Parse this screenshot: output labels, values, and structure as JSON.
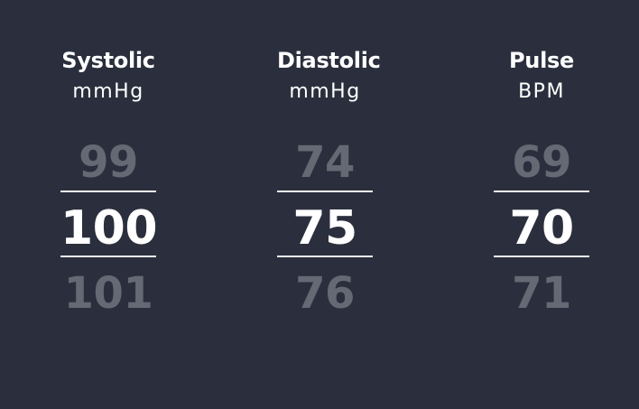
{
  "colors": {
    "background": "#2b2f3d",
    "text": "#ffffff",
    "divider": "#f1f1f1"
  },
  "columns": [
    {
      "title": "Systolic",
      "unit": "mmHg",
      "previous": "99",
      "current": "100",
      "next": "101"
    },
    {
      "title": "Diastolic",
      "unit": "mmHg",
      "previous": "74",
      "current": "75",
      "next": "76"
    },
    {
      "title": "Pulse",
      "unit": "BPM",
      "previous": "69",
      "current": "70",
      "next": "71"
    }
  ]
}
